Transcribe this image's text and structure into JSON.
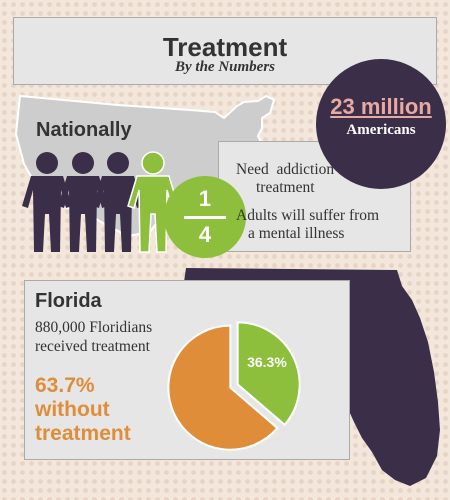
{
  "header": {
    "title": "Treatment",
    "subtitle": "By the Numbers"
  },
  "national": {
    "label": "Nationally",
    "count_value": "23 million",
    "count_label": "Americans",
    "fraction_numerator": "1",
    "fraction_denominator": "4",
    "fraction": 0.25,
    "addiction_line1": "Need  addiction",
    "addiction_line2": "treatment",
    "mental_line1": "Adults will suffer from",
    "mental_line2": "a mental illness"
  },
  "florida": {
    "label": "Florida",
    "received_line1": "880,000 Floridians",
    "received_line2": "received treatment",
    "without_line1": "63.7%",
    "without_line2": "without",
    "without_line3": "treatment"
  },
  "chart_data": {
    "type": "pie",
    "title": "",
    "slices": [
      {
        "label": "36.3%",
        "value": 36.3,
        "color": "#8dbe3c"
      },
      {
        "label": "63.7% without treatment",
        "value": 63.7,
        "color": "#e08d3a"
      }
    ]
  },
  "colors": {
    "purple": "#3b2e48",
    "green": "#8dbe3c",
    "orange": "#e08d3a",
    "pink": "#e8a9a0",
    "panel": "#e6e6e6",
    "map_gray": "#cfcfcf"
  }
}
